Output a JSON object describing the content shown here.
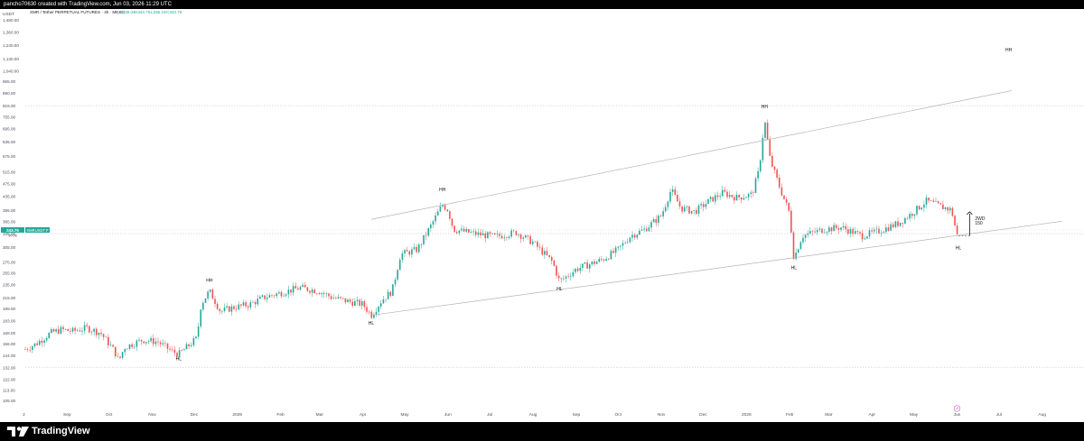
{
  "header": {
    "caption": "pancho70630 created with TradingView.com, Jun 03, 2026 11:29 UTC"
  },
  "footer": {
    "brand": "TradingView",
    "logo_icon": "tradingview-logo-icon"
  },
  "colors": {
    "up": "#26a69a",
    "down": "#ef5350",
    "line": "#b2b5be",
    "text": "#131722",
    "price_tag": "#26a69a"
  },
  "chart_data": {
    "type": "candlestick",
    "symbol_line": {
      "name": "XMR / Tether PERPETUAL FUTURES · 4h · MEXC",
      "o": "O338.04",
      "h": "H343.75",
      "l": "L335.19",
      "c": "C343.75"
    },
    "currency": "USDT",
    "price_tag": {
      "value": "343.75",
      "symbol": "XMRUSDT.P",
      "left_value": "30:08"
    },
    "y_scale": "log",
    "ylim": [
      100,
      1480
    ],
    "y_ticks": [
      1480,
      1360,
      1240,
      1130,
      1040,
      965,
      890,
      815,
      755,
      695,
      635,
      575,
      515,
      475,
      435,
      395,
      365,
      335,
      305,
      275,
      255,
      235,
      215,
      199,
      183,
      168,
      156,
      144,
      132,
      122,
      113,
      105
    ],
    "y_tick_labels": [
      "1,480.00",
      "1,360.00",
      "1,240.00",
      "1,130.00",
      "1,040.00",
      "965.00",
      "890.00",
      "815.00",
      "755.00",
      "695.00",
      "635.00",
      "575.00",
      "515.00",
      "475.00",
      "435.00",
      "395.00",
      "365.00",
      "335.00",
      "305.00",
      "275.00",
      "255.00",
      "235.00",
      "215.00",
      "199.00",
      "183.00",
      "168.00",
      "156.00",
      "144.00",
      "132.00",
      "122.00",
      "113.00",
      "105.00"
    ],
    "x_start": "2024-08-02",
    "x_end": "2026-08-31",
    "x_ticks": [
      {
        "date": "2024-08-01",
        "label": "2"
      },
      {
        "date": "2024-09-01",
        "label": "Sep"
      },
      {
        "date": "2024-10-01",
        "label": "Oct"
      },
      {
        "date": "2024-11-01",
        "label": "Nov"
      },
      {
        "date": "2024-12-01",
        "label": "Dec"
      },
      {
        "date": "2025-01-01",
        "label": "2025"
      },
      {
        "date": "2025-02-01",
        "label": "Feb"
      },
      {
        "date": "2025-03-01",
        "label": "Mar"
      },
      {
        "date": "2025-04-01",
        "label": "Apr"
      },
      {
        "date": "2025-05-01",
        "label": "May"
      },
      {
        "date": "2025-06-01",
        "label": "Jun"
      },
      {
        "date": "2025-07-01",
        "label": "Jul"
      },
      {
        "date": "2025-08-01",
        "label": "Aug"
      },
      {
        "date": "2025-09-01",
        "label": "Sep"
      },
      {
        "date": "2025-10-01",
        "label": "Oct"
      },
      {
        "date": "2025-11-01",
        "label": "Nov"
      },
      {
        "date": "2025-12-01",
        "label": "Dec"
      },
      {
        "date": "2026-01-01",
        "label": "2026"
      },
      {
        "date": "2026-02-01",
        "label": "Feb"
      },
      {
        "date": "2026-03-01",
        "label": "Mar"
      },
      {
        "date": "2026-04-01",
        "label": "Apr"
      },
      {
        "date": "2026-05-01",
        "label": "May"
      },
      {
        "date": "2026-06-01",
        "label": "Jun"
      },
      {
        "date": "2026-07-01",
        "label": "Jul"
      },
      {
        "date": "2026-08-01",
        "label": "Aug"
      }
    ],
    "price_path": [
      {
        "date": "2024-08-02",
        "price": 150
      },
      {
        "date": "2024-08-10",
        "price": 156
      },
      {
        "date": "2024-08-20",
        "price": 168
      },
      {
        "date": "2024-08-28",
        "price": 172
      },
      {
        "date": "2024-09-05",
        "price": 170
      },
      {
        "date": "2024-09-15",
        "price": 174
      },
      {
        "date": "2024-09-25",
        "price": 168
      },
      {
        "date": "2024-10-05",
        "price": 148
      },
      {
        "date": "2024-10-08",
        "price": 138
      },
      {
        "date": "2024-10-12",
        "price": 152
      },
      {
        "date": "2024-10-25",
        "price": 160
      },
      {
        "date": "2024-11-05",
        "price": 158
      },
      {
        "date": "2024-11-15",
        "price": 148
      },
      {
        "date": "2024-11-20",
        "price": 145
      },
      {
        "date": "2024-11-28",
        "price": 155
      },
      {
        "date": "2024-12-03",
        "price": 162
      },
      {
        "date": "2024-12-06",
        "price": 205
      },
      {
        "date": "2024-12-12",
        "price": 225
      },
      {
        "date": "2024-12-20",
        "price": 195
      },
      {
        "date": "2024-12-28",
        "price": 200
      },
      {
        "date": "2025-01-10",
        "price": 205
      },
      {
        "date": "2025-01-20",
        "price": 215
      },
      {
        "date": "2025-02-01",
        "price": 222
      },
      {
        "date": "2025-02-15",
        "price": 230
      },
      {
        "date": "2025-02-28",
        "price": 225
      },
      {
        "date": "2025-03-10",
        "price": 215
      },
      {
        "date": "2025-03-20",
        "price": 210
      },
      {
        "date": "2025-04-01",
        "price": 205
      },
      {
        "date": "2025-04-07",
        "price": 190
      },
      {
        "date": "2025-04-15",
        "price": 212
      },
      {
        "date": "2025-04-22",
        "price": 225
      },
      {
        "date": "2025-04-28",
        "price": 290
      },
      {
        "date": "2025-05-10",
        "price": 300
      },
      {
        "date": "2025-05-20",
        "price": 355
      },
      {
        "date": "2025-05-28",
        "price": 410
      },
      {
        "date": "2025-06-01",
        "price": 395
      },
      {
        "date": "2025-06-05",
        "price": 345
      },
      {
        "date": "2025-06-20",
        "price": 335
      },
      {
        "date": "2025-07-05",
        "price": 328
      },
      {
        "date": "2025-07-20",
        "price": 338
      },
      {
        "date": "2025-08-01",
        "price": 315
      },
      {
        "date": "2025-08-15",
        "price": 275
      },
      {
        "date": "2025-08-20",
        "price": 240
      },
      {
        "date": "2025-09-01",
        "price": 262
      },
      {
        "date": "2025-09-20",
        "price": 280
      },
      {
        "date": "2025-10-01",
        "price": 300
      },
      {
        "date": "2025-10-10",
        "price": 330
      },
      {
        "date": "2025-10-20",
        "price": 345
      },
      {
        "date": "2025-11-01",
        "price": 380
      },
      {
        "date": "2025-11-08",
        "price": 455
      },
      {
        "date": "2025-11-15",
        "price": 400
      },
      {
        "date": "2025-11-25",
        "price": 390
      },
      {
        "date": "2025-12-05",
        "price": 420
      },
      {
        "date": "2025-12-15",
        "price": 445
      },
      {
        "date": "2025-12-25",
        "price": 430
      },
      {
        "date": "2026-01-05",
        "price": 440
      },
      {
        "date": "2026-01-10",
        "price": 520
      },
      {
        "date": "2026-01-14",
        "price": 740
      },
      {
        "date": "2026-01-18",
        "price": 560
      },
      {
        "date": "2026-01-25",
        "price": 460
      },
      {
        "date": "2026-02-01",
        "price": 385
      },
      {
        "date": "2026-02-04",
        "price": 282
      },
      {
        "date": "2026-02-10",
        "price": 330
      },
      {
        "date": "2026-02-25",
        "price": 345
      },
      {
        "date": "2026-03-10",
        "price": 350
      },
      {
        "date": "2026-03-25",
        "price": 330
      },
      {
        "date": "2026-04-05",
        "price": 340
      },
      {
        "date": "2026-04-20",
        "price": 360
      },
      {
        "date": "2026-05-01",
        "price": 390
      },
      {
        "date": "2026-05-10",
        "price": 420
      },
      {
        "date": "2026-05-20",
        "price": 405
      },
      {
        "date": "2026-05-28",
        "price": 395
      },
      {
        "date": "2026-06-01",
        "price": 330
      },
      {
        "date": "2026-06-02",
        "price": 343.75
      }
    ],
    "trendlines": [
      {
        "from": {
          "date": "2025-04-07",
          "price": 370
        },
        "to": {
          "date": "2026-07-10",
          "price": 905
        }
      },
      {
        "from": {
          "date": "2025-04-07",
          "price": 190
        },
        "to": {
          "date": "2026-08-15",
          "price": 365
        }
      }
    ],
    "horizontal_lines": [
      815,
      335,
      132
    ],
    "annotations": [
      {
        "text": "HH",
        "date": "2024-12-12",
        "price": 240
      },
      {
        "text": "HL",
        "date": "2024-11-20",
        "price": 139
      },
      {
        "text": "HL",
        "date": "2025-04-07",
        "price": 178
      },
      {
        "text": "HH",
        "date": "2025-05-28",
        "price": 450
      },
      {
        "text": "HL",
        "date": "2025-08-20",
        "price": 226
      },
      {
        "text": "HH",
        "date": "2026-01-14",
        "price": 800
      },
      {
        "text": "HL",
        "date": "2026-02-04",
        "price": 262
      },
      {
        "text": "HL",
        "date": "2026-06-02",
        "price": 300
      },
      {
        "text": "HH",
        "date": "2026-07-08",
        "price": 1190
      }
    ],
    "projection": {
      "date": "2026-06-10",
      "from_price": 330,
      "to_price": 390,
      "labels": [
        "2WD",
        "150"
      ]
    },
    "dashed_segment": {
      "from": {
        "date": "2026-06-02",
        "price": 330
      },
      "to": {
        "date": "2026-06-10",
        "price": 330
      }
    }
  }
}
